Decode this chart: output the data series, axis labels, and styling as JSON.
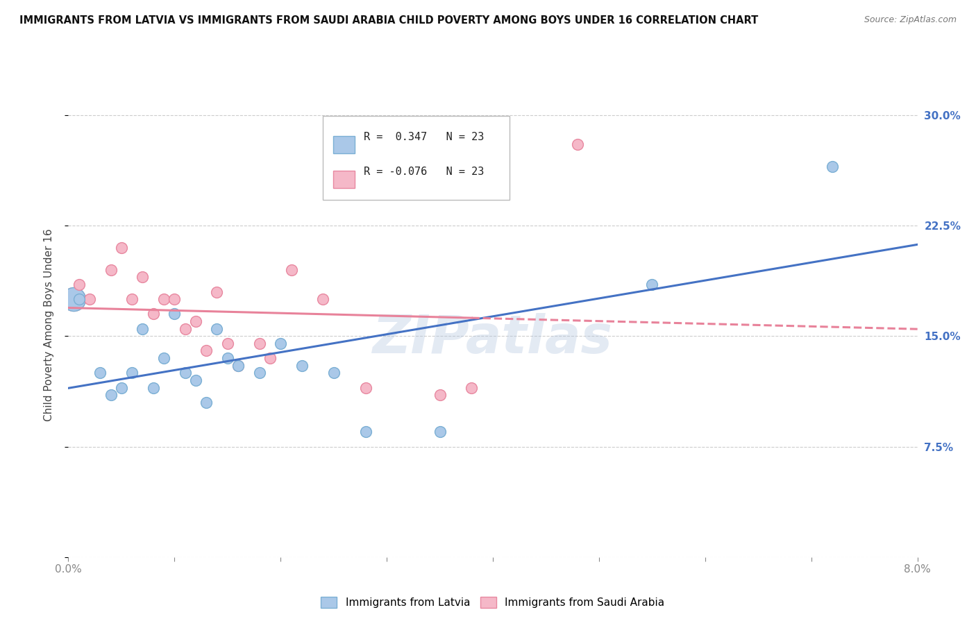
{
  "title": "IMMIGRANTS FROM LATVIA VS IMMIGRANTS FROM SAUDI ARABIA CHILD POVERTY AMONG BOYS UNDER 16 CORRELATION CHART",
  "source": "Source: ZipAtlas.com",
  "ylabel": "Child Poverty Among Boys Under 16",
  "ytick_labels": [
    "",
    "7.5%",
    "15.0%",
    "22.5%",
    "30.0%"
  ],
  "ytick_values": [
    0.0,
    0.075,
    0.15,
    0.225,
    0.3
  ],
  "xlim": [
    0.0,
    0.08
  ],
  "ylim": [
    0.0,
    0.315
  ],
  "watermark": "ZIPatlas",
  "legend_label1": "Immigrants from Latvia",
  "legend_label2": "Immigrants from Saudi Arabia",
  "r_latvia": 0.347,
  "r_saudi": -0.076,
  "n": 23,
  "latvia_color": "#aac8e8",
  "saudi_color": "#f5b8c8",
  "latvia_edge": "#7bafd4",
  "saudi_edge": "#e888a0",
  "line_latvia": "#4472c4",
  "line_saudi": "#e8829a",
  "latvia_x": [
    0.001,
    0.003,
    0.004,
    0.005,
    0.006,
    0.007,
    0.008,
    0.009,
    0.01,
    0.011,
    0.012,
    0.013,
    0.014,
    0.015,
    0.016,
    0.018,
    0.02,
    0.022,
    0.025,
    0.028,
    0.035,
    0.055,
    0.072
  ],
  "latvia_y": [
    0.175,
    0.125,
    0.11,
    0.115,
    0.125,
    0.155,
    0.115,
    0.135,
    0.165,
    0.125,
    0.12,
    0.105,
    0.155,
    0.135,
    0.13,
    0.125,
    0.145,
    0.13,
    0.125,
    0.085,
    0.085,
    0.185,
    0.265
  ],
  "saudi_x": [
    0.001,
    0.002,
    0.004,
    0.005,
    0.006,
    0.007,
    0.008,
    0.009,
    0.01,
    0.011,
    0.012,
    0.013,
    0.014,
    0.015,
    0.016,
    0.018,
    0.019,
    0.021,
    0.024,
    0.028,
    0.035,
    0.038,
    0.048
  ],
  "saudi_y": [
    0.185,
    0.175,
    0.195,
    0.21,
    0.175,
    0.19,
    0.165,
    0.175,
    0.175,
    0.155,
    0.16,
    0.14,
    0.18,
    0.145,
    0.13,
    0.145,
    0.135,
    0.195,
    0.175,
    0.115,
    0.11,
    0.115,
    0.28
  ],
  "grid_color": "#cccccc",
  "bg_color": "#ffffff",
  "marker_size": 130
}
